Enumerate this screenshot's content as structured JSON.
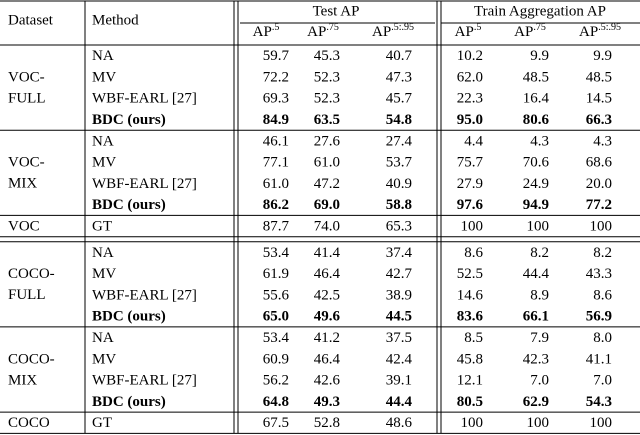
{
  "table": {
    "header": {
      "dataset": "Dataset",
      "method": "Method",
      "groups": [
        "Test AP",
        "Train Aggregation AP"
      ],
      "metrics": [
        {
          "base": "AP",
          "sup": ".5"
        },
        {
          "base": "AP",
          "sup": ".75"
        },
        {
          "base": "AP",
          "sup": ".5:.95"
        },
        {
          "base": "AP",
          "sup": ".5"
        },
        {
          "base": "AP",
          "sup": ".75"
        },
        {
          "base": "AP",
          "sup": ".5:.95"
        }
      ]
    },
    "blocks": [
      {
        "dataset": [
          "VOC-",
          "FULL"
        ],
        "rows": [
          {
            "method": "NA",
            "values": [
              "59.7",
              "45.3",
              "40.7",
              "10.2",
              "9.9",
              "9.9"
            ]
          },
          {
            "method": "MV",
            "values": [
              "72.2",
              "52.3",
              "47.3",
              "62.0",
              "48.5",
              "48.5"
            ]
          },
          {
            "method": "WBF-EARL [27]",
            "values": [
              "69.3",
              "52.3",
              "45.7",
              "22.3",
              "16.4",
              "14.5"
            ]
          },
          {
            "method": "BDC (ours)",
            "bold": true,
            "values": [
              "84.9",
              "63.5",
              "54.8",
              "95.0",
              "80.6",
              "66.3"
            ]
          }
        ]
      },
      {
        "dataset": [
          "VOC-",
          "MIX"
        ],
        "rows": [
          {
            "method": "NA",
            "values": [
              "46.1",
              "27.6",
              "27.4",
              "4.4",
              "4.3",
              "4.3"
            ]
          },
          {
            "method": "MV",
            "values": [
              "77.1",
              "61.0",
              "53.7",
              "75.7",
              "70.6",
              "68.6"
            ]
          },
          {
            "method": "WBF-EARL [27]",
            "values": [
              "61.0",
              "47.2",
              "40.9",
              "27.9",
              "24.9",
              "20.0"
            ]
          },
          {
            "method": "BDC (ours)",
            "bold": true,
            "values": [
              "86.2",
              "69.0",
              "58.8",
              "97.6",
              "94.9",
              "77.2"
            ]
          }
        ]
      },
      {
        "dataset": [
          "VOC"
        ],
        "rows": [
          {
            "method": "GT",
            "values": [
              "87.7",
              "74.0",
              "65.3",
              "100",
              "100",
              "100"
            ]
          }
        ]
      },
      {
        "dataset": [
          "COCO-",
          "FULL"
        ],
        "rows": [
          {
            "method": "NA",
            "values": [
              "53.4",
              "41.4",
              "37.4",
              "8.6",
              "8.2",
              "8.2"
            ]
          },
          {
            "method": "MV",
            "values": [
              "61.9",
              "46.4",
              "42.7",
              "52.5",
              "44.4",
              "43.3"
            ]
          },
          {
            "method": "WBF-EARL [27]",
            "values": [
              "55.6",
              "42.5",
              "38.9",
              "14.6",
              "8.9",
              "8.6"
            ]
          },
          {
            "method": "BDC (ours)",
            "bold": true,
            "values": [
              "65.0",
              "49.6",
              "44.5",
              "83.6",
              "66.1",
              "56.9"
            ]
          }
        ]
      },
      {
        "dataset": [
          "COCO-",
          "MIX"
        ],
        "rows": [
          {
            "method": "NA",
            "values": [
              "53.4",
              "41.2",
              "37.5",
              "8.5",
              "7.9",
              "8.0"
            ]
          },
          {
            "method": "MV",
            "values": [
              "60.9",
              "46.4",
              "42.4",
              "45.8",
              "42.3",
              "41.1"
            ]
          },
          {
            "method": "WBF-EARL [27]",
            "values": [
              "56.2",
              "42.6",
              "39.1",
              "12.1",
              "7.0",
              "7.0"
            ]
          },
          {
            "method": "BDC (ours)",
            "bold": true,
            "values": [
              "64.8",
              "49.3",
              "44.4",
              "80.5",
              "62.9",
              "54.3"
            ]
          }
        ]
      },
      {
        "dataset": [
          "COCO"
        ],
        "rows": [
          {
            "method": "GT",
            "values": [
              "67.5",
              "52.8",
              "48.6",
              "100",
              "100",
              "100"
            ]
          }
        ]
      }
    ]
  }
}
